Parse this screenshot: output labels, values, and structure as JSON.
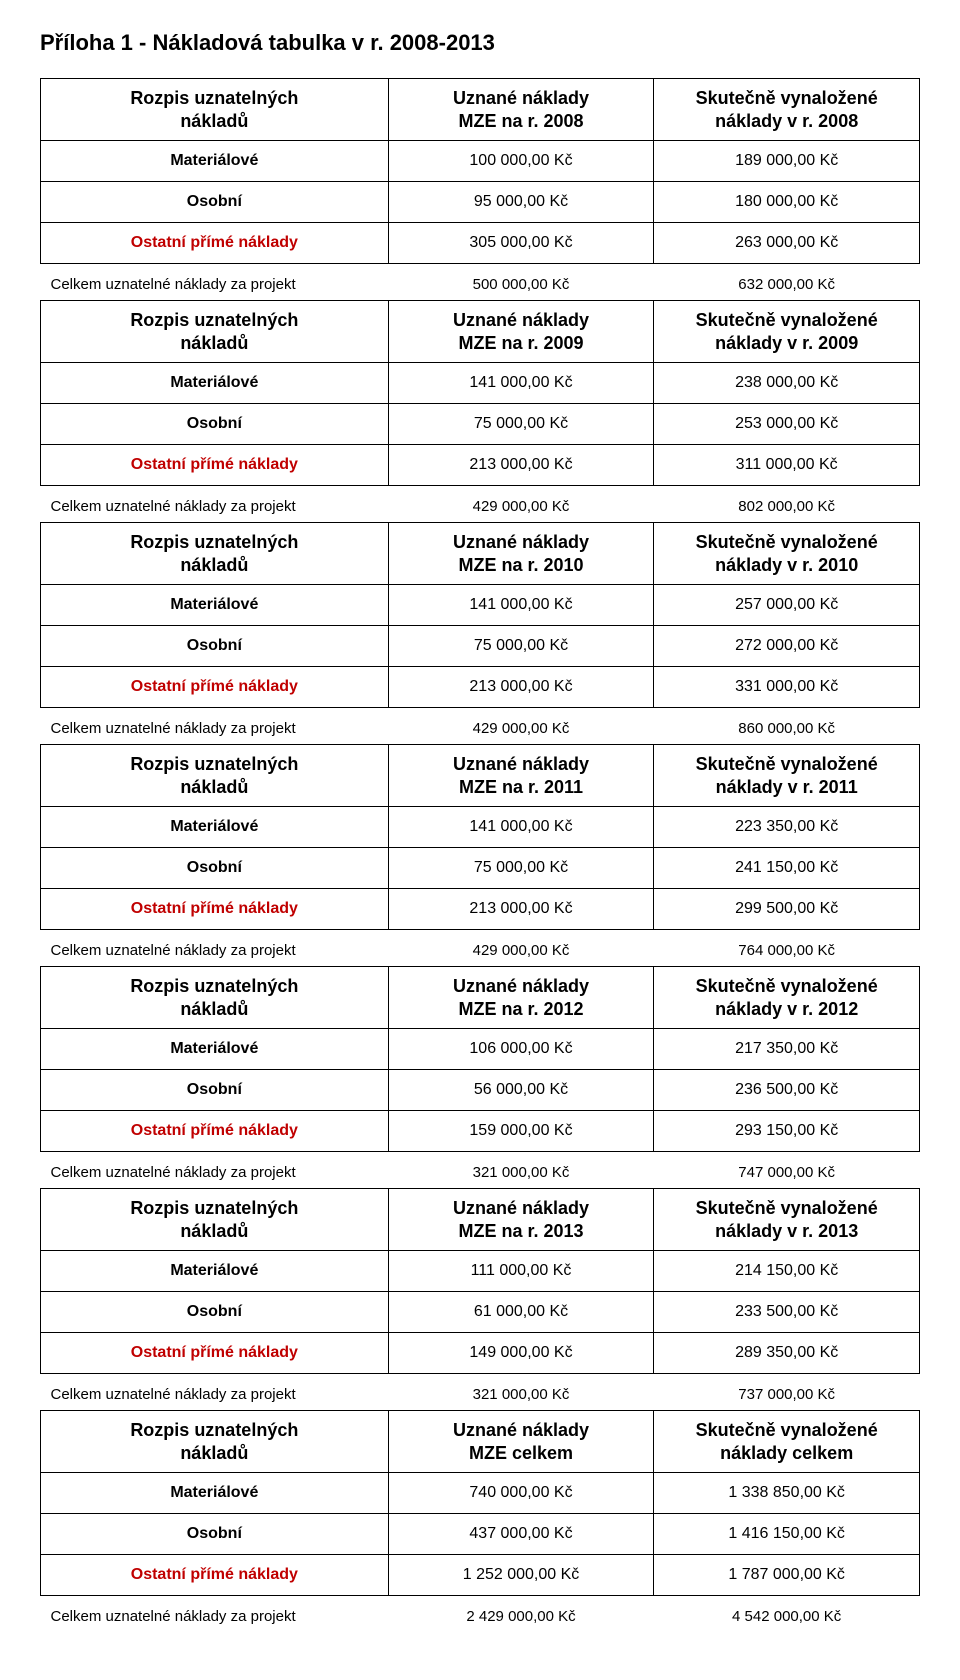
{
  "page_title": "Příloha 1 -  Nákladová tabulka v r. 2008-2013",
  "labels": {
    "rozpis_l1": "Rozpis uznatelných",
    "rozpis_l2": "nákladů",
    "uznane_l1": "Uznané náklady",
    "skutecne_l1": "Skutečně vynaložené",
    "materialove": "Materiálové",
    "osobni": "Osobní",
    "ostatni": "Ostatní přímé náklady",
    "celkem": "Celkem uznatelné náklady za  projekt"
  },
  "years": [
    {
      "mze_l2": "MZE na r. 2008",
      "skut_l2": "náklady v r. 2008",
      "material": {
        "mze": "100 000,00 Kč",
        "skut": "189 000,00 Kč"
      },
      "osobni": {
        "mze": "95 000,00 Kč",
        "skut": "180 000,00 Kč"
      },
      "ostatni": {
        "mze": "305 000,00 Kč",
        "skut": "263 000,00 Kč"
      },
      "celkem": {
        "mze": "500 000,00 Kč",
        "skut": "632 000,00 Kč"
      }
    },
    {
      "mze_l2": "MZE na r. 2009",
      "skut_l2": "náklady v r. 2009",
      "material": {
        "mze": "141 000,00 Kč",
        "skut": "238 000,00 Kč"
      },
      "osobni": {
        "mze": "75 000,00 Kč",
        "skut": "253 000,00 Kč"
      },
      "ostatni": {
        "mze": "213 000,00 Kč",
        "skut": "311 000,00 Kč"
      },
      "celkem": {
        "mze": "429 000,00 Kč",
        "skut": "802 000,00 Kč"
      }
    },
    {
      "mze_l2": "MZE na r. 2010",
      "skut_l2": "náklady v r. 2010",
      "material": {
        "mze": "141 000,00 Kč",
        "skut": "257 000,00 Kč"
      },
      "osobni": {
        "mze": "75 000,00 Kč",
        "skut": "272 000,00 Kč"
      },
      "ostatni": {
        "mze": "213 000,00 Kč",
        "skut": "331 000,00 Kč"
      },
      "celkem": {
        "mze": "429 000,00 Kč",
        "skut": "860 000,00 Kč"
      }
    },
    {
      "mze_l2": "MZE na r. 2011",
      "skut_l2": "náklady v r. 2011",
      "material": {
        "mze": "141 000,00 Kč",
        "skut": "223 350,00 Kč"
      },
      "osobni": {
        "mze": "75 000,00 Kč",
        "skut": "241 150,00 Kč"
      },
      "ostatni": {
        "mze": "213 000,00 Kč",
        "skut": "299 500,00 Kč"
      },
      "celkem": {
        "mze": "429 000,00 Kč",
        "skut": "764 000,00 Kč"
      }
    },
    {
      "mze_l2": "MZE na r. 2012",
      "skut_l2": "náklady v r. 2012",
      "material": {
        "mze": "106 000,00 Kč",
        "skut": "217 350,00 Kč"
      },
      "osobni": {
        "mze": "56 000,00 Kč",
        "skut": "236 500,00 Kč"
      },
      "ostatni": {
        "mze": "159 000,00 Kč",
        "skut": "293 150,00 Kč"
      },
      "celkem": {
        "mze": "321 000,00 Kč",
        "skut": "747 000,00 Kč"
      }
    },
    {
      "mze_l2": "MZE na r. 2013",
      "skut_l2": "náklady v r. 2013",
      "material": {
        "mze": "111 000,00 Kč",
        "skut": "214 150,00 Kč"
      },
      "osobni": {
        "mze": "61 000,00 Kč",
        "skut": "233 500,00 Kč"
      },
      "ostatni": {
        "mze": "149 000,00 Kč",
        "skut": "289 350,00 Kč"
      },
      "celkem": {
        "mze": "321 000,00 Kč",
        "skut": "737 000,00 Kč"
      }
    },
    {
      "mze_l2": "MZE celkem",
      "skut_l2": "náklady  celkem",
      "material": {
        "mze": "740 000,00 Kč",
        "skut": "1 338 850,00 Kč"
      },
      "osobni": {
        "mze": "437 000,00 Kč",
        "skut": "1 416 150,00 Kč"
      },
      "ostatni": {
        "mze": "1 252 000,00 Kč",
        "skut": "1 787 000,00 Kč"
      },
      "celkem": {
        "mze": "2 429 000,00 Kč",
        "skut": "4 542 000,00 Kč"
      }
    }
  ],
  "style": {
    "header_border_color": "#000000",
    "ostatni_color": "#c00000",
    "text_color": "#000000",
    "background_color": "#ffffff",
    "title_fontsize": 22,
    "header_fontsize": 18,
    "cell_fontsize": 16,
    "total_fontsize": 15,
    "col_widths_pct": [
      40,
      30,
      30
    ]
  }
}
